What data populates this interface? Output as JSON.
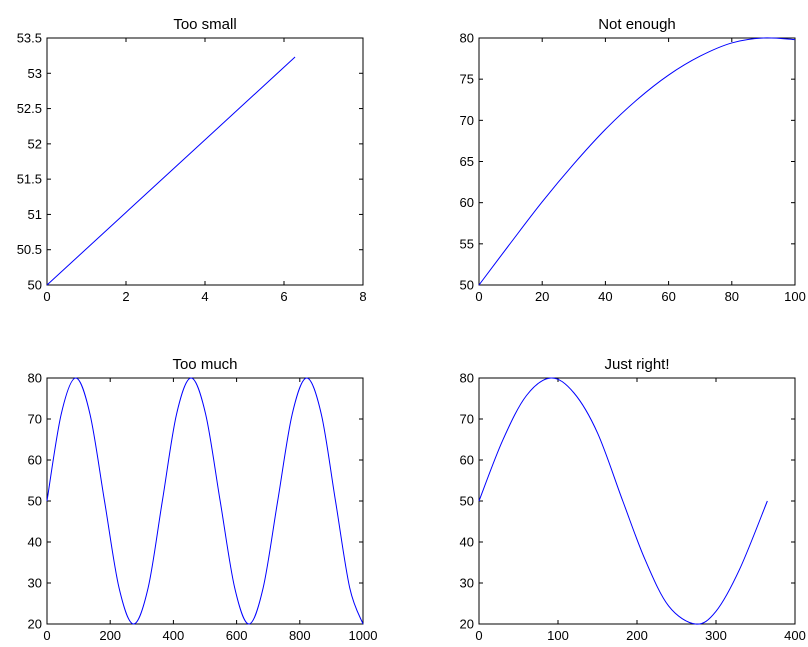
{
  "chart_data": [
    {
      "type": "line",
      "title": "Too small",
      "xlabel": "",
      "ylabel": "",
      "xlim": [
        0,
        8
      ],
      "ylim": [
        50,
        53.5
      ],
      "x_ticks": [
        0,
        2,
        4,
        6,
        8
      ],
      "x_tick_labels": [
        "0",
        "2",
        "4",
        "6",
        "8"
      ],
      "y_ticks": [
        50,
        50.5,
        51,
        51.5,
        52,
        52.5,
        53,
        53.5
      ],
      "y_tick_labels": [
        "50",
        "50.5",
        "51",
        "51.5",
        "52",
        "52.5",
        "53",
        "53.5"
      ],
      "grid": false,
      "line_color": "#0000ff",
      "series": [
        {
          "x": [
            0,
            6.28
          ],
          "y": [
            50,
            53.23
          ]
        }
      ]
    },
    {
      "type": "line",
      "title": "Not enough",
      "xlabel": "",
      "ylabel": "",
      "xlim": [
        0,
        100
      ],
      "ylim": [
        50,
        80
      ],
      "x_ticks": [
        0,
        20,
        40,
        60,
        80,
        100
      ],
      "x_tick_labels": [
        "0",
        "20",
        "40",
        "60",
        "80",
        "100"
      ],
      "y_ticks": [
        50,
        55,
        60,
        65,
        70,
        75,
        80
      ],
      "y_tick_labels": [
        "50",
        "55",
        "60",
        "65",
        "70",
        "75",
        "80"
      ],
      "grid": false,
      "line_color": "#0000ff",
      "series": [
        {
          "x": [
            0,
            10,
            20,
            30,
            40,
            50,
            60,
            70,
            80,
            90,
            100
          ],
          "y": [
            50,
            55.1,
            60.1,
            64.7,
            68.9,
            72.5,
            75.5,
            77.8,
            79.4,
            80.0,
            79.8
          ]
        }
      ]
    },
    {
      "type": "line",
      "title": "Too much",
      "xlabel": "",
      "ylabel": "",
      "xlim": [
        0,
        1000
      ],
      "ylim": [
        20,
        80
      ],
      "x_ticks": [
        0,
        200,
        400,
        600,
        800,
        1000
      ],
      "x_tick_labels": [
        "0",
        "200",
        "400",
        "600",
        "800",
        "1000"
      ],
      "y_ticks": [
        20,
        30,
        40,
        50,
        60,
        70,
        80
      ],
      "y_tick_labels": [
        "20",
        "30",
        "40",
        "50",
        "60",
        "70",
        "80"
      ],
      "grid": false,
      "line_color": "#0000ff",
      "series": [
        {
          "x": [
            0,
            45,
            91,
            136,
            182,
            228,
            274,
            320,
            365,
            410,
            456,
            502,
            548,
            594,
            639,
            684,
            730,
            776,
            822,
            868,
            913,
            958,
            1000
          ],
          "y": [
            50,
            71.2,
            80,
            71.2,
            50,
            28.8,
            20,
            28.8,
            50,
            71.2,
            80,
            71.2,
            50,
            28.8,
            20,
            28.8,
            50,
            71.2,
            80,
            71.2,
            50,
            28.8,
            20
          ]
        }
      ]
    },
    {
      "type": "line",
      "title": "Just right!",
      "xlabel": "",
      "ylabel": "",
      "xlim": [
        0,
        400
      ],
      "ylim": [
        20,
        80
      ],
      "x_ticks": [
        0,
        100,
        200,
        300,
        400
      ],
      "x_tick_labels": [
        "0",
        "100",
        "200",
        "300",
        "400"
      ],
      "y_ticks": [
        20,
        30,
        40,
        50,
        60,
        70,
        80
      ],
      "y_tick_labels": [
        "20",
        "30",
        "40",
        "50",
        "60",
        "70",
        "80"
      ],
      "grid": false,
      "line_color": "#0000ff",
      "series": [
        {
          "x": [
            0,
            30,
            60,
            91,
            120,
            150,
            182,
            210,
            240,
            274,
            300,
            330,
            365
          ],
          "y": [
            50,
            64.8,
            75.7,
            80,
            76.4,
            66.6,
            50,
            35.8,
            24.4,
            20,
            23.1,
            33.4,
            50
          ]
        }
      ]
    }
  ]
}
